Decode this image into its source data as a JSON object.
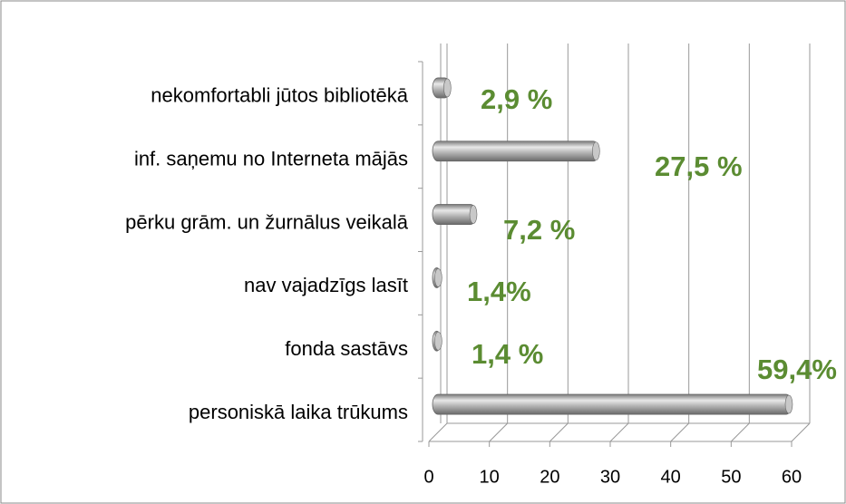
{
  "chart_data": {
    "type": "bar",
    "orientation": "horizontal",
    "categories": [
      "nekomfortabli jūtos bibliotēkā",
      "inf. saņemu no Interneta mājās",
      "pērku grām. un žurnālus veikalā",
      "nav vajadzīgs lasīt",
      "fonda sastāvs",
      "personiskā laika trūkums"
    ],
    "values": [
      2.9,
      27.5,
      7.2,
      1.4,
      1.4,
      59.4
    ],
    "value_labels": [
      "2,9 %",
      "27,5 %",
      "7,2 %",
      "1,4%",
      "1,4 %",
      "59,4%"
    ],
    "color": "#a6a6a6",
    "label_color": "#5b8c32",
    "xlim": [
      0,
      60
    ],
    "xticks": [
      0,
      10,
      20,
      30,
      40,
      50,
      60
    ],
    "grid": true
  }
}
